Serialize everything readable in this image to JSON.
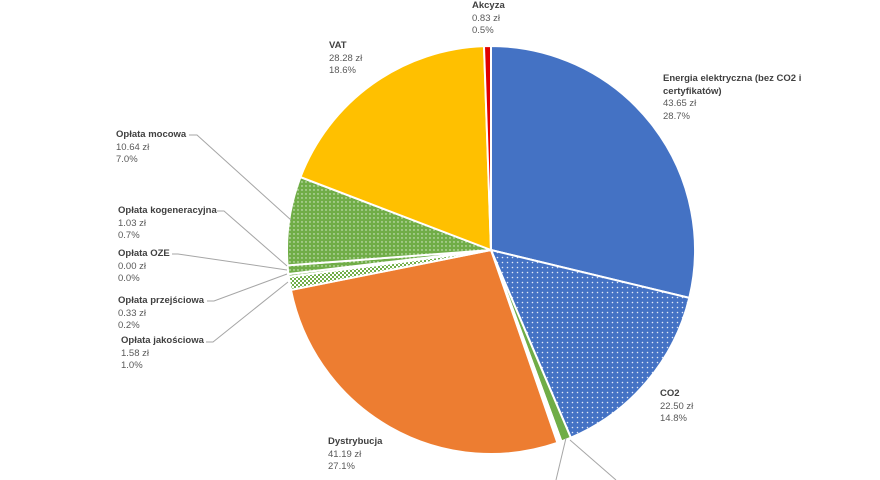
{
  "chart_data": {
    "type": "pie",
    "title": "",
    "slices": [
      {
        "name": "Energia elektryczna (bez CO2 i certyfikatów)",
        "value": 43.65,
        "value_label": "43.65 zł",
        "percent_label": "28.7%",
        "color": "#4472C4",
        "pattern": "solid"
      },
      {
        "name": "CO2",
        "value": 22.5,
        "value_label": "22.50 zł",
        "percent_label": "14.8%",
        "color": "#4472C4",
        "pattern": "dotted"
      },
      {
        "name": "",
        "value": 1.2,
        "value_label": "",
        "percent_label": "",
        "color": "#70AD47",
        "pattern": "solid"
      },
      {
        "name": "",
        "value": 0.5,
        "value_label": "",
        "percent_label": "",
        "color": "#ffffff",
        "pattern": "solid"
      },
      {
        "name": "Dystrybucja",
        "value": 41.19,
        "value_label": "41.19 zł",
        "percent_label": "27.1%",
        "color": "#ED7D31",
        "pattern": "solid"
      },
      {
        "name": "Opłata jakościowa",
        "value": 1.58,
        "value_label": "1.58 zł",
        "percent_label": "1.0%",
        "color": "#70AD47",
        "pattern": "checker"
      },
      {
        "name": "Opłata przejściowa",
        "value": 0.33,
        "value_label": "0.33 zł",
        "percent_label": "0.2%",
        "color": "#70AD47",
        "pattern": "dotted"
      },
      {
        "name": "Opłata OZE",
        "value": 0.0,
        "value_label": "0.00 zł",
        "percent_label": "0.0%",
        "color": "#70AD47",
        "pattern": "solid"
      },
      {
        "name": "Opłata kogeneracyjna",
        "value": 1.03,
        "value_label": "1.03 zł",
        "percent_label": "0.7%",
        "color": "#70AD47",
        "pattern": "dotted"
      },
      {
        "name": "Opłata mocowa",
        "value": 10.64,
        "value_label": "10.64 zł",
        "percent_label": "7.0%",
        "color": "#70AD47",
        "pattern": "dotted"
      },
      {
        "name": "VAT",
        "value": 28.28,
        "value_label": "28.28 zł",
        "percent_label": "18.6%",
        "color": "#FFC000",
        "pattern": "solid"
      },
      {
        "name": "Akcyza",
        "value": 0.83,
        "value_label": "0.83 zł",
        "percent_label": "0.5%",
        "color": "#E00000",
        "pattern": "solid"
      }
    ],
    "legend": "none",
    "start_angle_deg": 0,
    "direction": "clockwise"
  }
}
